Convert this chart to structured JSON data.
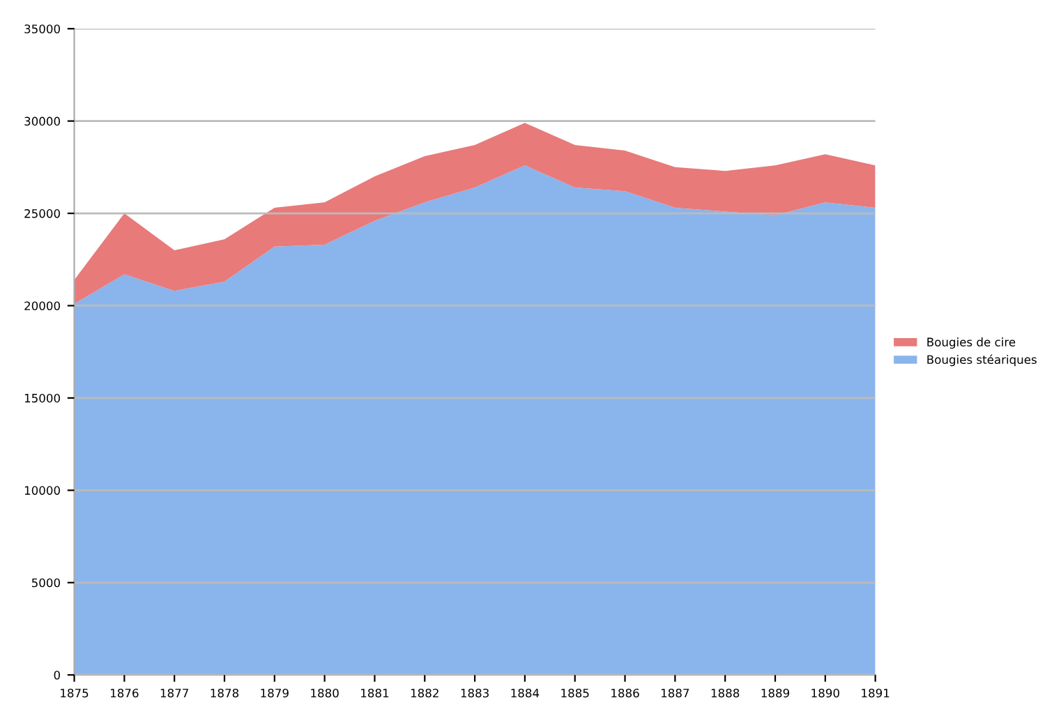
{
  "chart_data": {
    "type": "area",
    "stacked": true,
    "x": [
      1875,
      1876,
      1877,
      1878,
      1879,
      1880,
      1881,
      1882,
      1883,
      1884,
      1885,
      1886,
      1887,
      1888,
      1889,
      1890,
      1891
    ],
    "series": [
      {
        "name": "Bougies stéariques",
        "color": "#8ab4ec",
        "values": [
          20100,
          21700,
          20800,
          21300,
          23200,
          23300,
          24600,
          25600,
          26400,
          27600,
          26400,
          26200,
          25300,
          25100,
          24900,
          25600,
          25300
        ]
      },
      {
        "name": "Bougies de cire",
        "color": "#e87a7a",
        "values": [
          1300,
          3300,
          2200,
          2300,
          2100,
          2300,
          2400,
          2500,
          2300,
          2300,
          2300,
          2200,
          2200,
          2200,
          2700,
          2600,
          2300
        ]
      }
    ],
    "xlim": [
      1875,
      1891
    ],
    "xticks": [
      1875,
      1876,
      1877,
      1878,
      1879,
      1880,
      1881,
      1882,
      1883,
      1884,
      1885,
      1886,
      1887,
      1888,
      1889,
      1890,
      1891
    ],
    "ylim": [
      0,
      35000
    ],
    "yticks": [
      0,
      5000,
      10000,
      15000,
      20000,
      25000,
      30000,
      35000
    ],
    "grid": "y",
    "legend": "right"
  }
}
